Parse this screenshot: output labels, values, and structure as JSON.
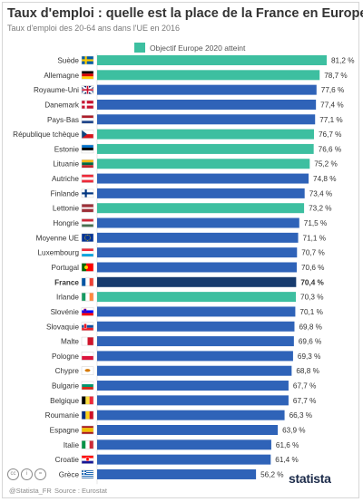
{
  "header": {
    "title": "Taux d'emploi : quelle est la place de la France en Europe ?",
    "subtitle": "Taux d'emploi des 20-64 ans dans l'UE en 2016"
  },
  "legend": {
    "label": "Objectif Europe 2020 atteint",
    "color": "#3dbfa0"
  },
  "colors": {
    "default": "#2f63b8",
    "goal_met": "#3dbfa0",
    "highlight": "#173b6e"
  },
  "chart_data": {
    "type": "bar",
    "orientation": "horizontal",
    "unit": "%",
    "categories": [
      "Suède",
      "Allemagne",
      "Royaume-Uni",
      "Danemark",
      "Pays-Bas",
      "République tchèque",
      "Estonie",
      "Lituanie",
      "Autriche",
      "Finlande",
      "Lettonie",
      "Hongrie",
      "Moyenne UE",
      "Luxembourg",
      "Portugal",
      "France",
      "Irlande",
      "Slovénie",
      "Slovaquie",
      "Malte",
      "Pologne",
      "Chypre",
      "Bulgarie",
      "Belgique",
      "Roumanie",
      "Espagne",
      "Italie",
      "Croatie",
      "Grèce"
    ],
    "values": [
      81.2,
      78.7,
      77.6,
      77.4,
      77.1,
      76.7,
      76.6,
      75.2,
      74.8,
      73.4,
      73.2,
      71.5,
      71.1,
      70.7,
      70.6,
      70.4,
      70.3,
      70.1,
      69.8,
      69.6,
      69.3,
      68.8,
      67.7,
      67.7,
      66.3,
      63.9,
      61.6,
      61.4,
      56.2
    ],
    "value_labels": [
      "81,2 %",
      "78,7 %",
      "77,6 %",
      "77,4 %",
      "77,1 %",
      "76,7 %",
      "76,6 %",
      "75,2 %",
      "74,8 %",
      "73,4 %",
      "73,2 %",
      "71,5 %",
      "71,1 %",
      "70,7 %",
      "70,6 %",
      "70,4 %",
      "70,3 %",
      "70,1 %",
      "69,8 %",
      "69,6 %",
      "69,3 %",
      "68,8 %",
      "67,7 %",
      "67,7 %",
      "66,3 %",
      "63,9 %",
      "61,6 %",
      "61,4 %",
      "56,2 %"
    ],
    "goal_met": [
      true,
      true,
      false,
      false,
      false,
      true,
      true,
      true,
      false,
      false,
      true,
      false,
      false,
      false,
      false,
      false,
      true,
      false,
      false,
      false,
      false,
      false,
      false,
      false,
      false,
      false,
      false,
      false,
      false
    ],
    "highlight": "France",
    "flags": [
      "flag-sweden-icon",
      "flag-germany-icon",
      "flag-uk-icon",
      "flag-denmark-icon",
      "flag-netherlands-icon",
      "flag-czech-icon",
      "flag-estonia-icon",
      "flag-lithuania-icon",
      "flag-austria-icon",
      "flag-finland-icon",
      "flag-latvia-icon",
      "flag-hungary-icon",
      "flag-eu-icon",
      "flag-luxembourg-icon",
      "flag-portugal-icon",
      "flag-france-icon",
      "flag-ireland-icon",
      "flag-slovenia-icon",
      "flag-slovakia-icon",
      "flag-malta-icon",
      "flag-poland-icon",
      "flag-cyprus-icon",
      "flag-bulgaria-icon",
      "flag-belgium-icon",
      "flag-romania-icon",
      "flag-spain-icon",
      "flag-italy-icon",
      "flag-croatia-icon",
      "flag-greece-icon"
    ],
    "xlim": [
      0,
      81.2
    ]
  },
  "footer": {
    "cc_labels": [
      "cc",
      "i",
      "="
    ],
    "credit": "@Statista_FR",
    "source": "Source : Eurostat",
    "brand": "statista"
  }
}
